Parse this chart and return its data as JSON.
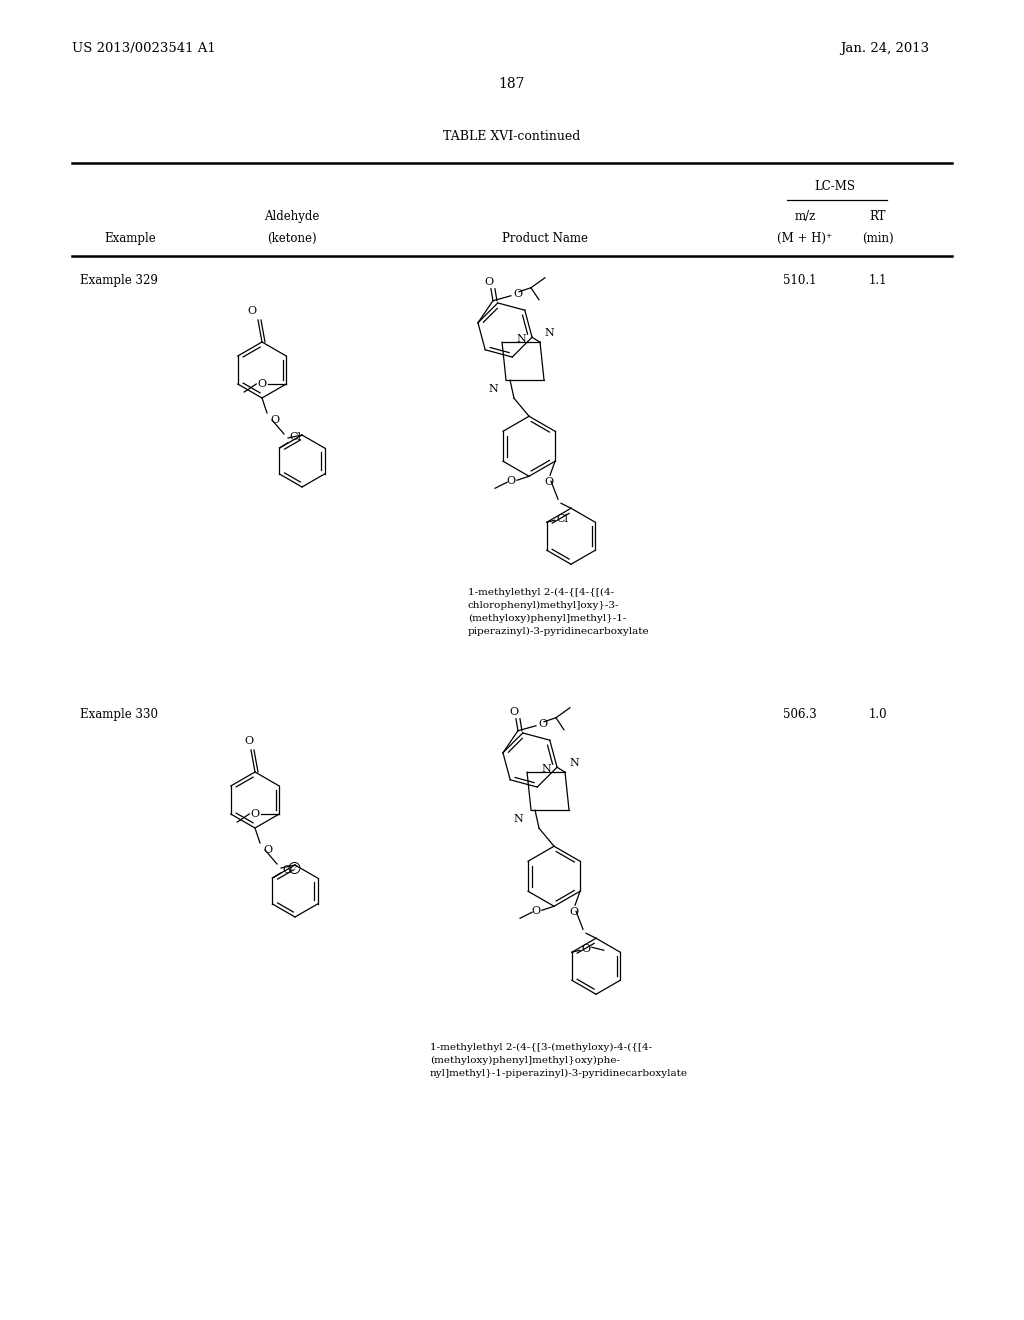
{
  "background_color": "#ffffff",
  "page_number": "187",
  "patent_left": "US 2013/0023541 A1",
  "patent_right": "Jan. 24, 2013",
  "table_title": "TABLE XVI-continued",
  "header_lcms": "LC-MS",
  "header_mz": "m/z",
  "header_rt": "RT",
  "header_mz2": "(M + H)⁺",
  "header_rt2": "(min)",
  "header_example": "Example",
  "header_aldehyde": "Aldehyde",
  "header_ketone": "(ketone)",
  "header_product": "Product Name",
  "example1_label": "Example 329",
  "example1_mz": "510.1",
  "example1_rt": "1.1",
  "example1_name_line1": "1-methylethyl 2-(4-{[4-{[(4-",
  "example1_name_line2": "chlorophenyl)methyl]oxy}-3-",
  "example1_name_line3": "(methyloxy)phenyl]methyl}-1-",
  "example1_name_line4": "piperazinyl)-3-pyridinecarboxylate",
  "example2_label": "Example 330",
  "example2_mz": "506.3",
  "example2_rt": "1.0",
  "example2_name_line1": "1-methylethyl 2-(4-{[3-(methyloxy)-4-({[4-",
  "example2_name_line2": "(methyloxy)phenyl]methyl}oxy)phe-",
  "example2_name_line3": "nyl]methyl}-1-piperazinyl)-3-pyridinecarboxylate"
}
